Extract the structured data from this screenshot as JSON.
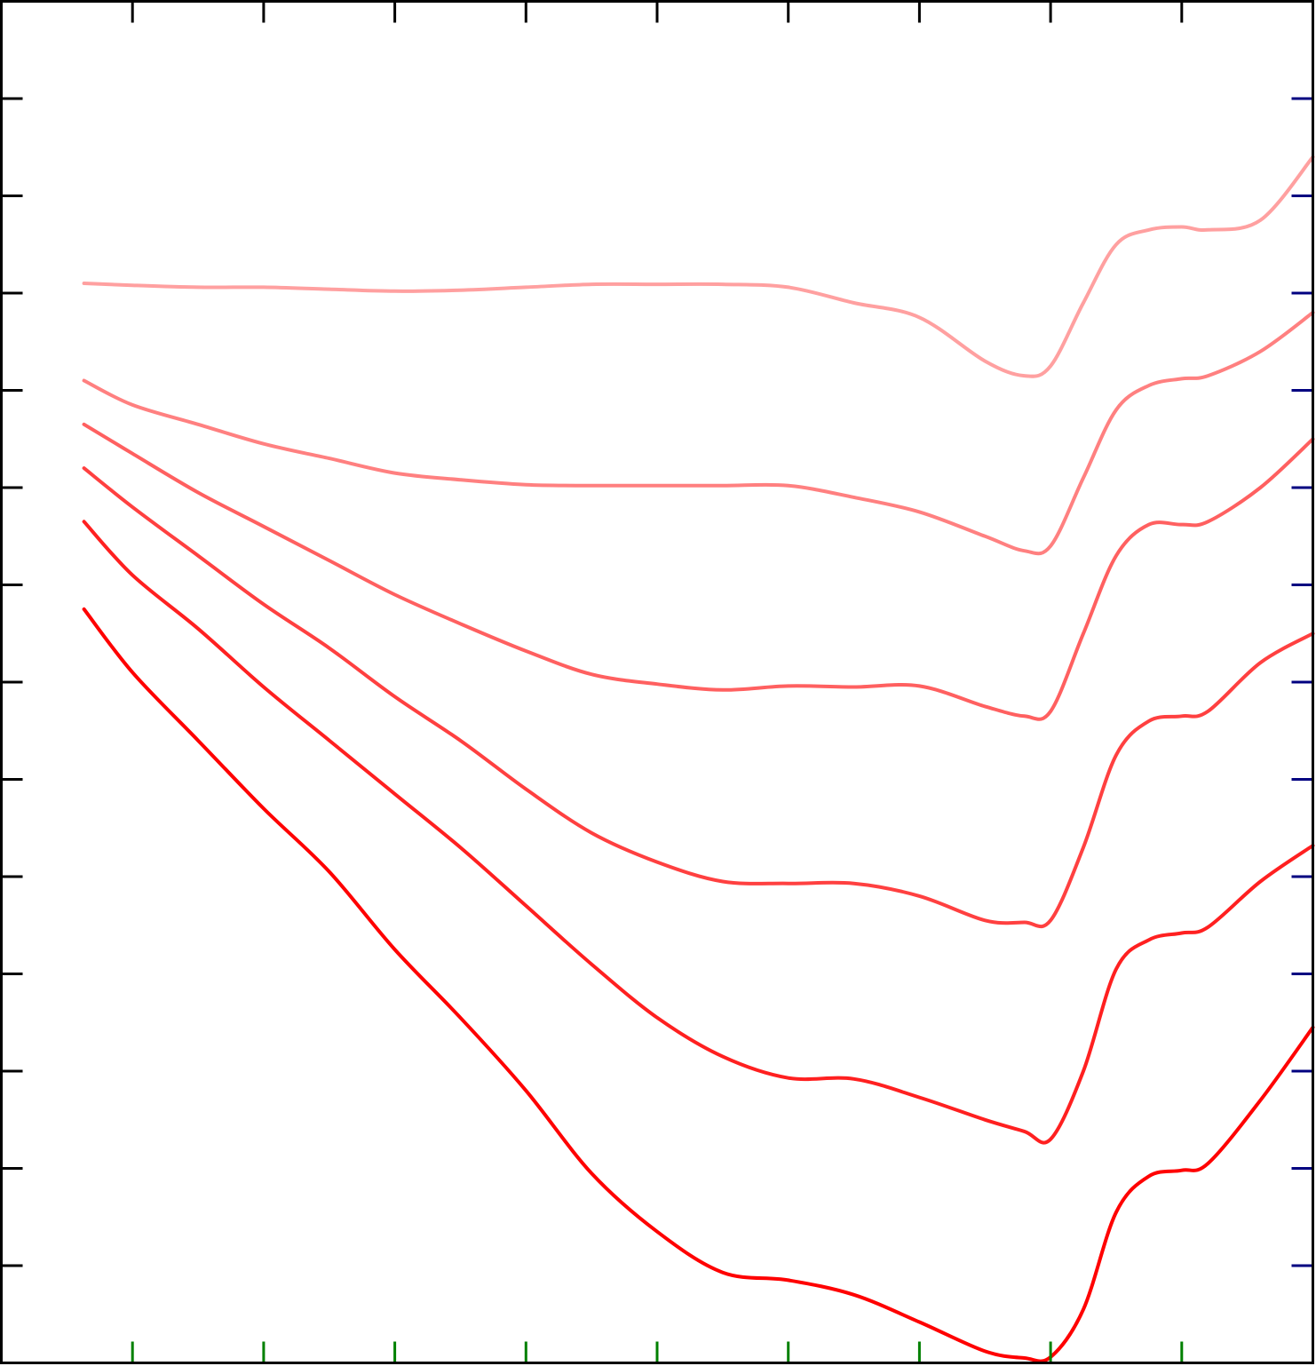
{
  "chart_data": {
    "type": "line",
    "title": "",
    "xlabel": "",
    "ylabel": "",
    "grid": false,
    "legend": "none",
    "xlim": [
      0,
      10
    ],
    "ylim": [
      0,
      14
    ],
    "x_ticks": [
      1,
      2,
      3,
      4,
      5,
      6,
      7,
      8,
      9
    ],
    "y_ticks": [
      1,
      2,
      3,
      4,
      5,
      6,
      7,
      8,
      9,
      10,
      11,
      12,
      13
    ],
    "tick_label_text": [],
    "tick_colors": {
      "top": "#000000",
      "left": "#000000",
      "bottom": "#008000",
      "right": "#000080"
    },
    "frame_color": "#000000",
    "x": [
      0.63,
      1.0,
      1.5,
      2.0,
      2.5,
      3.0,
      3.5,
      4.0,
      4.5,
      5.0,
      5.5,
      6.0,
      6.5,
      7.0,
      7.5,
      7.8,
      8.0,
      8.25,
      8.5,
      8.75,
      9.0,
      9.2,
      9.6,
      10.0
    ],
    "series": [
      {
        "color": "#ffa0a0",
        "values": [
          11.1,
          11.08,
          11.06,
          11.06,
          11.04,
          11.02,
          11.03,
          11.06,
          11.09,
          11.09,
          11.09,
          11.06,
          10.9,
          10.75,
          10.3,
          10.15,
          10.25,
          10.9,
          11.5,
          11.65,
          11.68,
          11.65,
          11.75,
          12.4
        ]
      },
      {
        "color": "#ff8080",
        "values": [
          10.1,
          9.85,
          9.65,
          9.45,
          9.3,
          9.15,
          9.08,
          9.03,
          9.02,
          9.02,
          9.02,
          9.02,
          8.9,
          8.75,
          8.5,
          8.35,
          8.4,
          9.1,
          9.8,
          10.05,
          10.12,
          10.15,
          10.4,
          10.8
        ]
      },
      {
        "color": "#ff6060",
        "values": [
          9.65,
          9.35,
          8.95,
          8.6,
          8.25,
          7.9,
          7.6,
          7.32,
          7.08,
          6.98,
          6.92,
          6.96,
          6.95,
          6.96,
          6.75,
          6.65,
          6.7,
          7.5,
          8.3,
          8.62,
          8.62,
          8.65,
          9.0,
          9.5
        ]
      },
      {
        "color": "#ff4040",
        "values": [
          9.2,
          8.8,
          8.3,
          7.8,
          7.35,
          6.85,
          6.4,
          5.9,
          5.45,
          5.15,
          4.95,
          4.93,
          4.93,
          4.8,
          4.55,
          4.53,
          4.55,
          5.3,
          6.25,
          6.6,
          6.65,
          6.7,
          7.2,
          7.5
        ]
      },
      {
        "color": "#ff2020",
        "values": [
          8.65,
          8.1,
          7.55,
          6.95,
          6.4,
          5.85,
          5.3,
          4.7,
          4.1,
          3.55,
          3.15,
          2.93,
          2.92,
          2.73,
          2.5,
          2.38,
          2.3,
          3.0,
          4.05,
          4.35,
          4.42,
          4.48,
          4.95,
          5.32
        ]
      },
      {
        "color": "#ff0000",
        "values": [
          7.75,
          7.1,
          6.4,
          5.7,
          5.05,
          4.25,
          3.55,
          2.8,
          1.95,
          1.35,
          0.93,
          0.85,
          0.7,
          0.42,
          0.12,
          0.05,
          0.06,
          0.55,
          1.55,
          1.92,
          1.98,
          2.05,
          2.7,
          3.45
        ]
      }
    ]
  }
}
